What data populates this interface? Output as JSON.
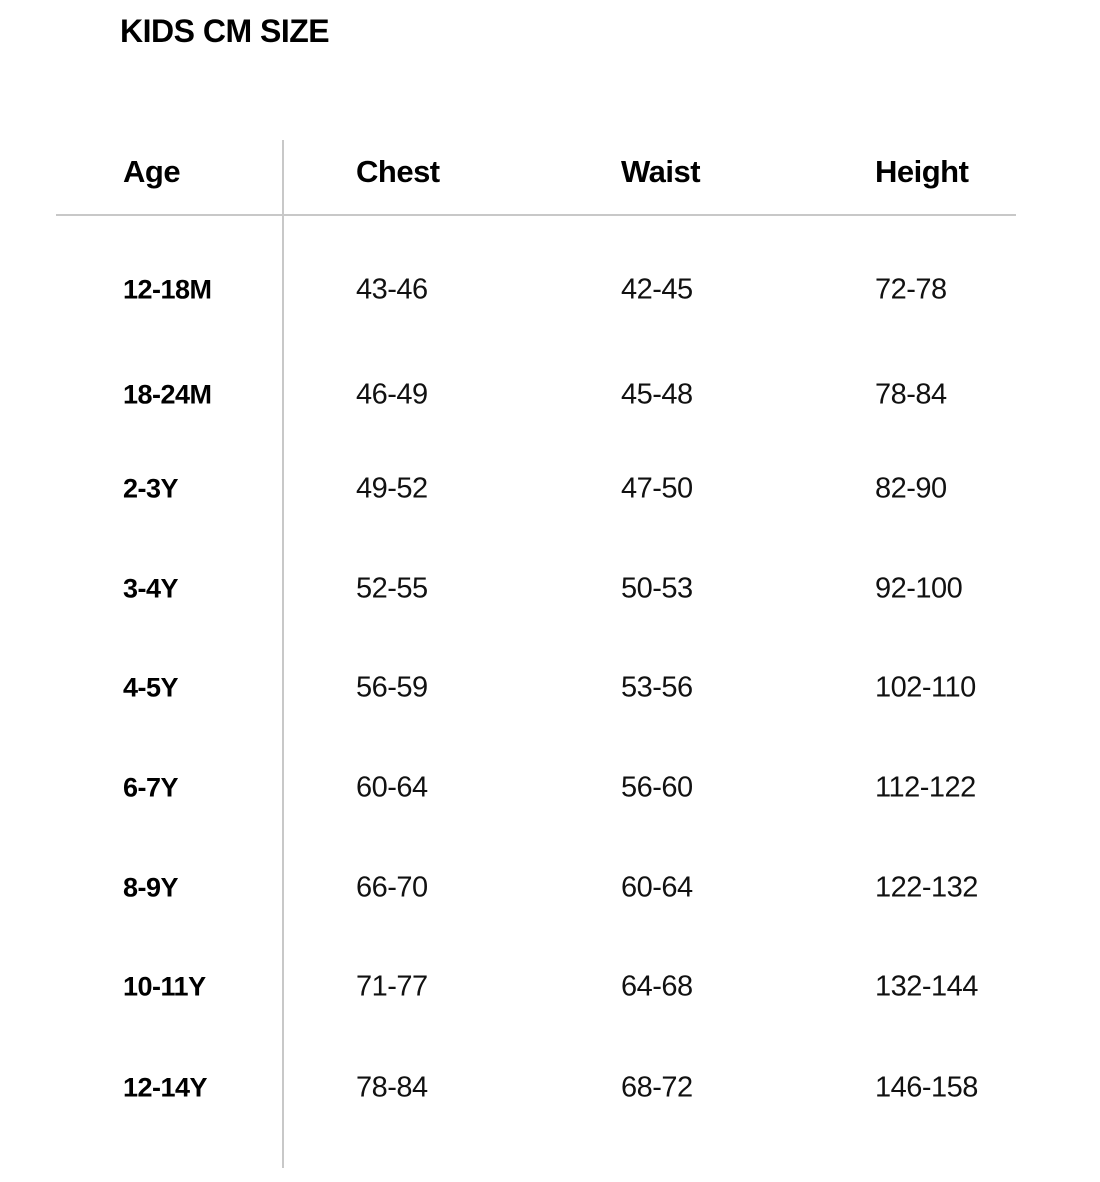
{
  "title": "KIDS CM SIZE",
  "table": {
    "headers": [
      "Age",
      "Chest",
      "Waist",
      "Height"
    ],
    "rows": [
      [
        "12-18M",
        "43-46",
        "42-45",
        "72-78"
      ],
      [
        "18-24M",
        "46-49",
        "45-48",
        "78-84"
      ],
      [
        "2-3Y",
        "49-52",
        "47-50",
        "82-90"
      ],
      [
        "3-4Y",
        "52-55",
        "50-53",
        "92-100"
      ],
      [
        "4-5Y",
        "56-59",
        "53-56",
        "102-110"
      ],
      [
        "6-7Y",
        "60-64",
        "56-60",
        "112-122"
      ],
      [
        "8-9Y",
        "66-70",
        "60-64",
        "122-132"
      ],
      [
        "10-11Y",
        "71-77",
        "64-68",
        "132-144"
      ],
      [
        "12-14Y",
        "78-84",
        "68-72",
        "146-158"
      ]
    ]
  },
  "colors": {
    "text": "#000000",
    "divider": "#c8c8c8",
    "background": "#ffffff"
  }
}
